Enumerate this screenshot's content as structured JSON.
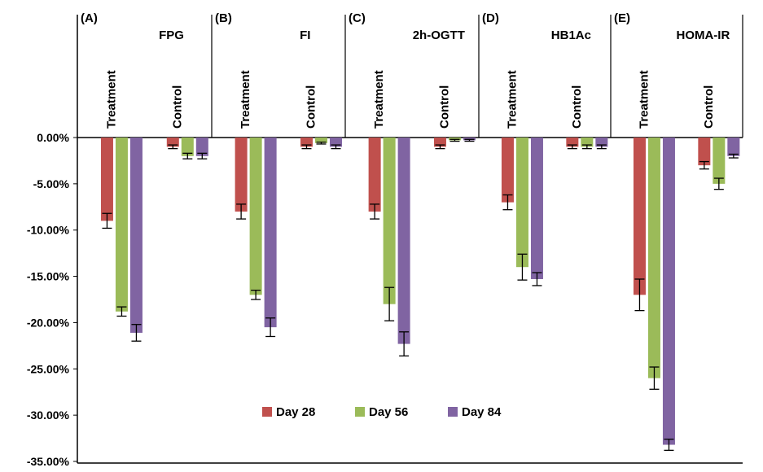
{
  "chart_data": {
    "type": "bar",
    "groups": [
      "Treatment",
      "Control"
    ],
    "ylim": [
      -35,
      0
    ],
    "ytick_labels": [
      "0.00%",
      "-5.00%",
      "-10.00%",
      "-15.00%",
      "-20.00%",
      "-25.00%",
      "-30.00%",
      "-35.00%"
    ],
    "series": [
      {
        "name": "Day 28",
        "color": "#c0504d"
      },
      {
        "name": "Day 56",
        "color": "#9bbb59"
      },
      {
        "name": "Day 84",
        "color": "#8064a2"
      }
    ],
    "panels": [
      {
        "letter": "(A)",
        "title": "FPG",
        "values": {
          "Treatment": [
            -9.0,
            -18.8,
            -21.1
          ],
          "Control": [
            -1.0,
            -2.0,
            -2.0
          ]
        },
        "errors": {
          "Treatment": [
            0.8,
            0.5,
            0.9
          ],
          "Control": [
            0.2,
            0.3,
            0.3
          ]
        }
      },
      {
        "letter": "(B)",
        "title": "FI",
        "values": {
          "Treatment": [
            -8.0,
            -17.0,
            -20.5
          ],
          "Control": [
            -1.0,
            -0.6,
            -1.0
          ]
        },
        "errors": {
          "Treatment": [
            0.8,
            0.5,
            1.0
          ],
          "Control": [
            0.2,
            0.1,
            0.2
          ]
        }
      },
      {
        "letter": "(C)",
        "title": "2h-OGTT",
        "values": {
          "Treatment": [
            -8.0,
            -18.0,
            -22.3
          ],
          "Control": [
            -1.0,
            -0.3,
            -0.3
          ]
        },
        "errors": {
          "Treatment": [
            0.8,
            1.8,
            1.3
          ],
          "Control": [
            0.2,
            0.1,
            0.1
          ]
        }
      },
      {
        "letter": "(D)",
        "title": "HB1Ac",
        "values": {
          "Treatment": [
            -7.0,
            -14.0,
            -15.3
          ],
          "Control": [
            -1.0,
            -1.0,
            -1.0
          ]
        },
        "errors": {
          "Treatment": [
            0.8,
            1.4,
            0.7
          ],
          "Control": [
            0.2,
            0.2,
            0.2
          ]
        }
      },
      {
        "letter": "(E)",
        "title": "HOMA-IR",
        "values": {
          "Treatment": [
            -17.0,
            -26.0,
            -33.2
          ],
          "Control": [
            -3.0,
            -5.0,
            -2.0
          ]
        },
        "errors": {
          "Treatment": [
            1.7,
            1.2,
            0.6
          ],
          "Control": [
            0.4,
            0.6,
            0.2
          ]
        }
      }
    ],
    "legend_position": "bottom-center",
    "grid": false
  }
}
